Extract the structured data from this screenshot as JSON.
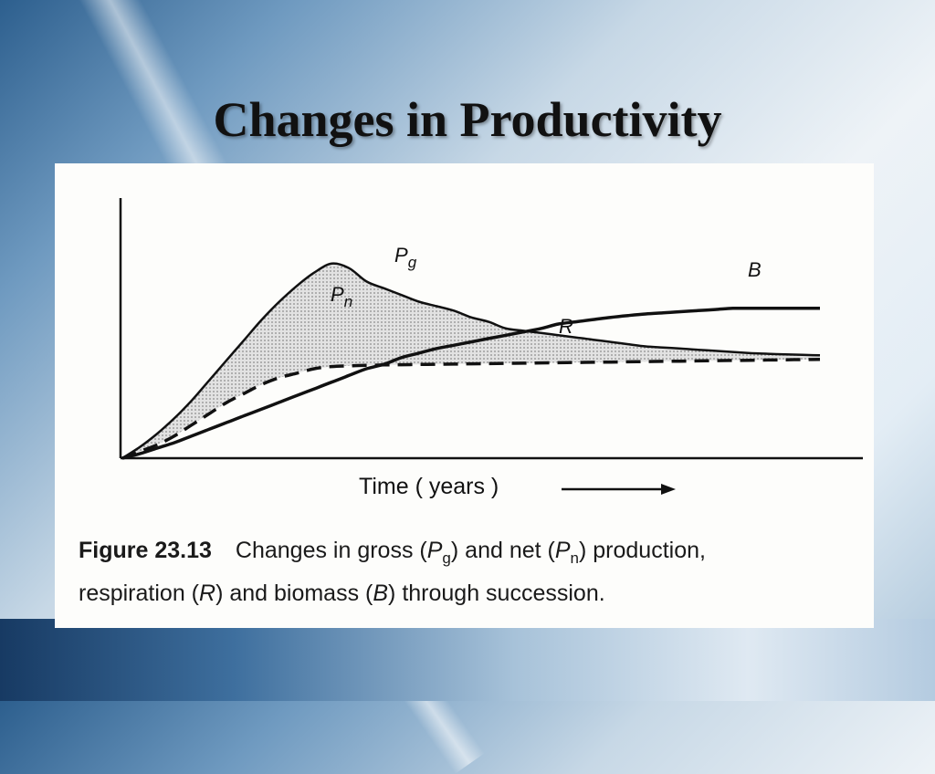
{
  "slide": {
    "title": "Changes in Productivity"
  },
  "chart_data": {
    "type": "line",
    "title": "",
    "xlabel": "Time ( years )",
    "ylabel": "",
    "x": [
      0,
      0.5,
      1,
      1.5,
      2,
      2.5,
      3,
      3.5,
      4,
      4.5,
      5,
      5.5,
      6,
      6.5,
      7,
      7.5,
      8,
      8.5,
      9,
      9.5,
      10,
      10.5,
      11,
      11.5,
      12,
      12.5,
      13,
      13.5,
      14,
      14.5,
      15,
      15.5,
      16,
      16.5,
      17,
      17.5,
      18,
      18.5,
      19,
      19.5,
      20
    ],
    "series": [
      {
        "name": "Pg",
        "label": "P",
        "label_sub": "g",
        "style": "solid",
        "values": [
          0,
          5,
          11,
          18,
          26,
          35,
          44,
          53,
          62,
          70,
          77,
          83,
          87,
          85,
          79,
          76,
          73,
          70,
          68,
          66,
          63,
          61,
          58,
          57,
          56,
          55,
          54,
          53,
          52,
          51,
          50,
          49.5,
          49,
          48.5,
          48,
          47.5,
          47,
          46.7,
          46.4,
          46.2,
          46
        ]
      },
      {
        "name": "R",
        "label": "R",
        "label_sub": "",
        "style": "dashed",
        "values": [
          0,
          3,
          6,
          10,
          15,
          20,
          25,
          29,
          33,
          36,
          38,
          40,
          41,
          41.3,
          41.5,
          41.7,
          41.8,
          41.9,
          42,
          42.1,
          42.2,
          42.3,
          42.4,
          42.5,
          42.6,
          42.7,
          42.8,
          42.9,
          43,
          43.1,
          43.2,
          43.3,
          43.4,
          43.5,
          43.6,
          43.7,
          43.8,
          43.9,
          44,
          44.1,
          44.2
        ]
      },
      {
        "name": "B",
        "label": "B",
        "label_sub": "",
        "style": "solid",
        "values": [
          0,
          2,
          4.5,
          7,
          10,
          13,
          16,
          19,
          22,
          25,
          28,
          31,
          34,
          37,
          40,
          42,
          45,
          47,
          49,
          50.5,
          52,
          53.5,
          55,
          56.5,
          58,
          60,
          61,
          62,
          63,
          63.8,
          64.5,
          65,
          65.5,
          66,
          66.5,
          67,
          67,
          67,
          67,
          67,
          67
        ]
      }
    ],
    "shaded_region": {
      "between": [
        "R",
        "Pg"
      ],
      "label": "P",
      "label_sub": "n"
    },
    "xlim": [
      0,
      20
    ],
    "ylim": [
      0,
      100
    ],
    "grid": false,
    "legend": "inline labels"
  },
  "caption": {
    "fig_num": "Figure 23.13",
    "t1": "Changes in gross (",
    "pg_var": "P",
    "pg_sub": "g",
    "t2": ") and net (",
    "pn_var": "P",
    "pn_sub": "n",
    "t3": ") production,",
    "t4": "respiration (",
    "r_var": "R",
    "t5": ") and biomass (",
    "b_var": "B",
    "t6": ") through succession."
  }
}
